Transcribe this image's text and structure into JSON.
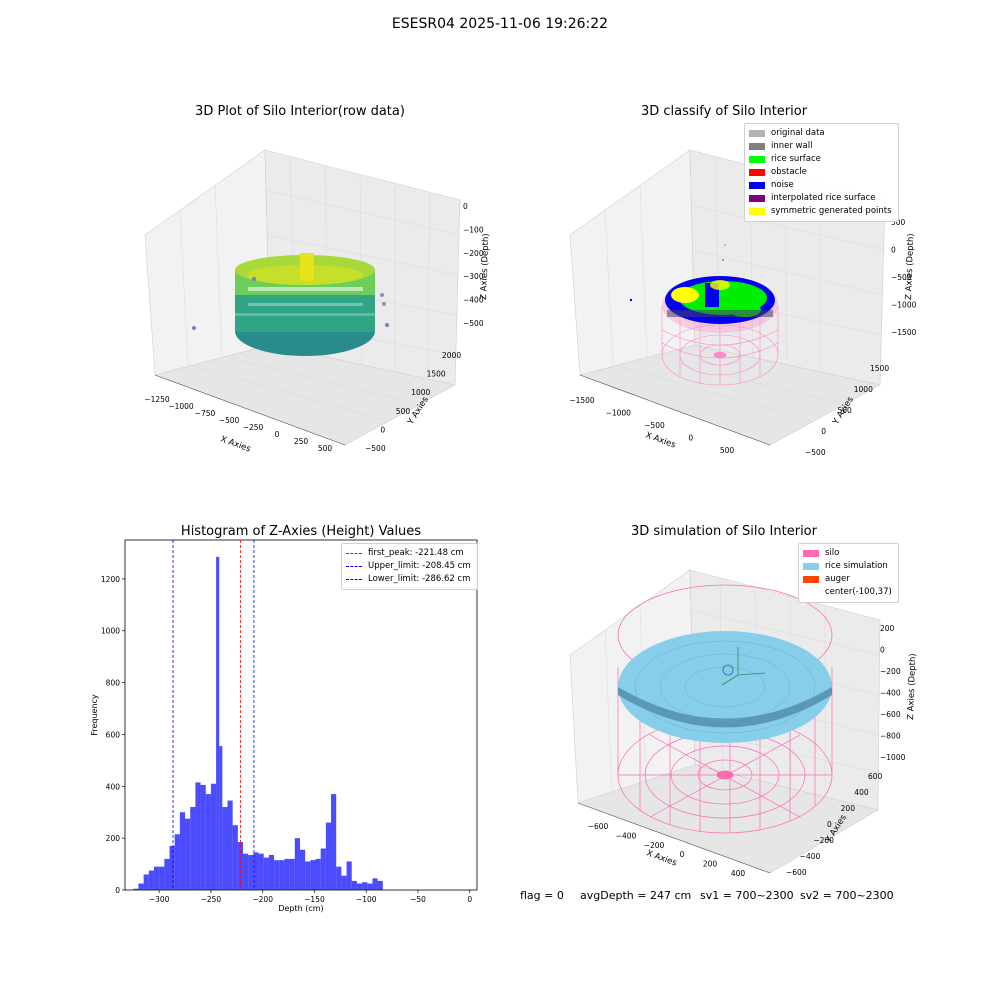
{
  "figure": {
    "suptitle": "ESESR04 2025-11-06 19:26:22"
  },
  "panels": {
    "raw": {
      "title": "3D Plot of Silo Interior(row data)",
      "xlabel": "X Axies",
      "ylabel": "Y Axies",
      "zlabel": "Z Axies (Depth)",
      "xticks": [
        "−1250",
        "−1000",
        "−750",
        "−500",
        "−250",
        "0",
        "250",
        "500"
      ],
      "yticks": [
        "−500",
        "0",
        "500",
        "1000",
        "1500",
        "2000"
      ],
      "zticks": [
        "0",
        "−100",
        "−200",
        "−300",
        "−400",
        "−500"
      ]
    },
    "classify": {
      "title": "3D classify of Silo Interior",
      "xlabel": "X Axies",
      "ylabel": "Y Axies",
      "zlabel": "Z Axies (Depth)",
      "xticks": [
        "−1500",
        "−1000",
        "−500",
        "0",
        "500"
      ],
      "yticks": [
        "−500",
        "0",
        "500",
        "1000",
        "1500"
      ],
      "zticks": [
        "500",
        "0",
        "−500",
        "−1000",
        "−1500"
      ],
      "legend": [
        {
          "label": "original data",
          "color": "#b3b3b3"
        },
        {
          "label": "inner wall",
          "color": "#808080"
        },
        {
          "label": "rice surface",
          "color": "#00ff00"
        },
        {
          "label": "obstacle",
          "color": "#ff0000"
        },
        {
          "label": "noise",
          "color": "#0000ee"
        },
        {
          "label": "interpolated rice surface",
          "color": "#800080"
        },
        {
          "label": "symmetric generated points",
          "color": "#ffff00"
        }
      ]
    },
    "simulation": {
      "title": "3D simulation of Silo Interior",
      "xlabel": "X Axies",
      "ylabel": "Y Axies",
      "zlabel": "Z Axies (Depth)",
      "xticks": [
        "−600",
        "−400",
        "−200",
        "0",
        "200",
        "400"
      ],
      "yticks": [
        "−600",
        "−400",
        "−200",
        "0",
        "200",
        "400",
        "600"
      ],
      "zticks": [
        "200",
        "0",
        "−200",
        "−400",
        "−600",
        "−800",
        "−1000"
      ],
      "legend": [
        {
          "label": "silo",
          "color": "#ff69b4"
        },
        {
          "label": "rice simulation",
          "color": "#87ceeb"
        },
        {
          "label": "auger",
          "color": "#ff4500"
        },
        {
          "label": "center(-100,37)",
          "color": "none"
        }
      ]
    }
  },
  "footer": {
    "flag": "flag = 0",
    "avg_depth": "avgDepth = 247 cm",
    "sv1": "sv1 = 700~2300",
    "sv2": "sv2 = 700~2300"
  },
  "chart_data": {
    "type": "bar",
    "title": "Histogram of Z-Axies (Height) Values",
    "xlabel": "Depth (cm)",
    "ylabel": "Frequency",
    "xlim": [
      -333,
      7
    ],
    "ylim": [
      0,
      1350
    ],
    "xticks": [
      -300,
      -250,
      -200,
      -150,
      -100,
      -50,
      0
    ],
    "yticks": [
      0,
      200,
      400,
      600,
      800,
      1000,
      1200
    ],
    "bar_color": "#0000ff",
    "bins": [
      {
        "x0": -325,
        "x1": -320,
        "v": 5
      },
      {
        "x0": -320,
        "x1": -315,
        "v": 25
      },
      {
        "x0": -315,
        "x1": -310,
        "v": 60
      },
      {
        "x0": -310,
        "x1": -305,
        "v": 75
      },
      {
        "x0": -305,
        "x1": -300,
        "v": 90
      },
      {
        "x0": -300,
        "x1": -295,
        "v": 90
      },
      {
        "x0": -295,
        "x1": -290,
        "v": 120
      },
      {
        "x0": -290,
        "x1": -285,
        "v": 170
      },
      {
        "x0": -285,
        "x1": -280,
        "v": 215
      },
      {
        "x0": -280,
        "x1": -275,
        "v": 300
      },
      {
        "x0": -275,
        "x1": -270,
        "v": 275
      },
      {
        "x0": -270,
        "x1": -265,
        "v": 320
      },
      {
        "x0": -265,
        "x1": -260,
        "v": 415
      },
      {
        "x0": -260,
        "x1": -255,
        "v": 405
      },
      {
        "x0": -255,
        "x1": -250,
        "v": 370
      },
      {
        "x0": -250,
        "x1": -245,
        "v": 410
      },
      {
        "x0": -245,
        "x1": -242,
        "v": 1285
      },
      {
        "x0": -242,
        "x1": -239,
        "v": 555
      },
      {
        "x0": -239,
        "x1": -234,
        "v": 320
      },
      {
        "x0": -234,
        "x1": -229,
        "v": 345
      },
      {
        "x0": -229,
        "x1": -224,
        "v": 250
      },
      {
        "x0": -224,
        "x1": -219,
        "v": 185
      },
      {
        "x0": -219,
        "x1": -214,
        "v": 140
      },
      {
        "x0": -214,
        "x1": -209,
        "v": 135
      },
      {
        "x0": -209,
        "x1": -204,
        "v": 145
      },
      {
        "x0": -204,
        "x1": -199,
        "v": 140
      },
      {
        "x0": -199,
        "x1": -194,
        "v": 125
      },
      {
        "x0": -194,
        "x1": -189,
        "v": 135
      },
      {
        "x0": -189,
        "x1": -184,
        "v": 115
      },
      {
        "x0": -184,
        "x1": -179,
        "v": 115
      },
      {
        "x0": -179,
        "x1": -174,
        "v": 120
      },
      {
        "x0": -174,
        "x1": -169,
        "v": 120
      },
      {
        "x0": -169,
        "x1": -164,
        "v": 200
      },
      {
        "x0": -164,
        "x1": -159,
        "v": 155
      },
      {
        "x0": -159,
        "x1": -154,
        "v": 110
      },
      {
        "x0": -154,
        "x1": -149,
        "v": 115
      },
      {
        "x0": -149,
        "x1": -144,
        "v": 120
      },
      {
        "x0": -144,
        "x1": -139,
        "v": 160
      },
      {
        "x0": -139,
        "x1": -134,
        "v": 260
      },
      {
        "x0": -134,
        "x1": -129,
        "v": 370
      },
      {
        "x0": -129,
        "x1": -124,
        "v": 90
      },
      {
        "x0": -124,
        "x1": -119,
        "v": 55
      },
      {
        "x0": -119,
        "x1": -114,
        "v": 110
      },
      {
        "x0": -114,
        "x1": -109,
        "v": 35
      },
      {
        "x0": -109,
        "x1": -104,
        "v": 25
      },
      {
        "x0": -104,
        "x1": -99,
        "v": 30
      },
      {
        "x0": -99,
        "x1": -94,
        "v": 25
      },
      {
        "x0": -94,
        "x1": -89,
        "v": 45
      },
      {
        "x0": -89,
        "x1": -84,
        "v": 35
      }
    ],
    "vlines": [
      {
        "x": -221.48,
        "color": "#ff0000",
        "label": "first_peak: -221.48 cm"
      },
      {
        "x": -208.45,
        "color": "#0000ff",
        "label": "Upper_limit: -208.45 cm"
      },
      {
        "x": -286.62,
        "color": "#0000ff",
        "label": "Lower_limit: -286.62 cm"
      }
    ]
  }
}
